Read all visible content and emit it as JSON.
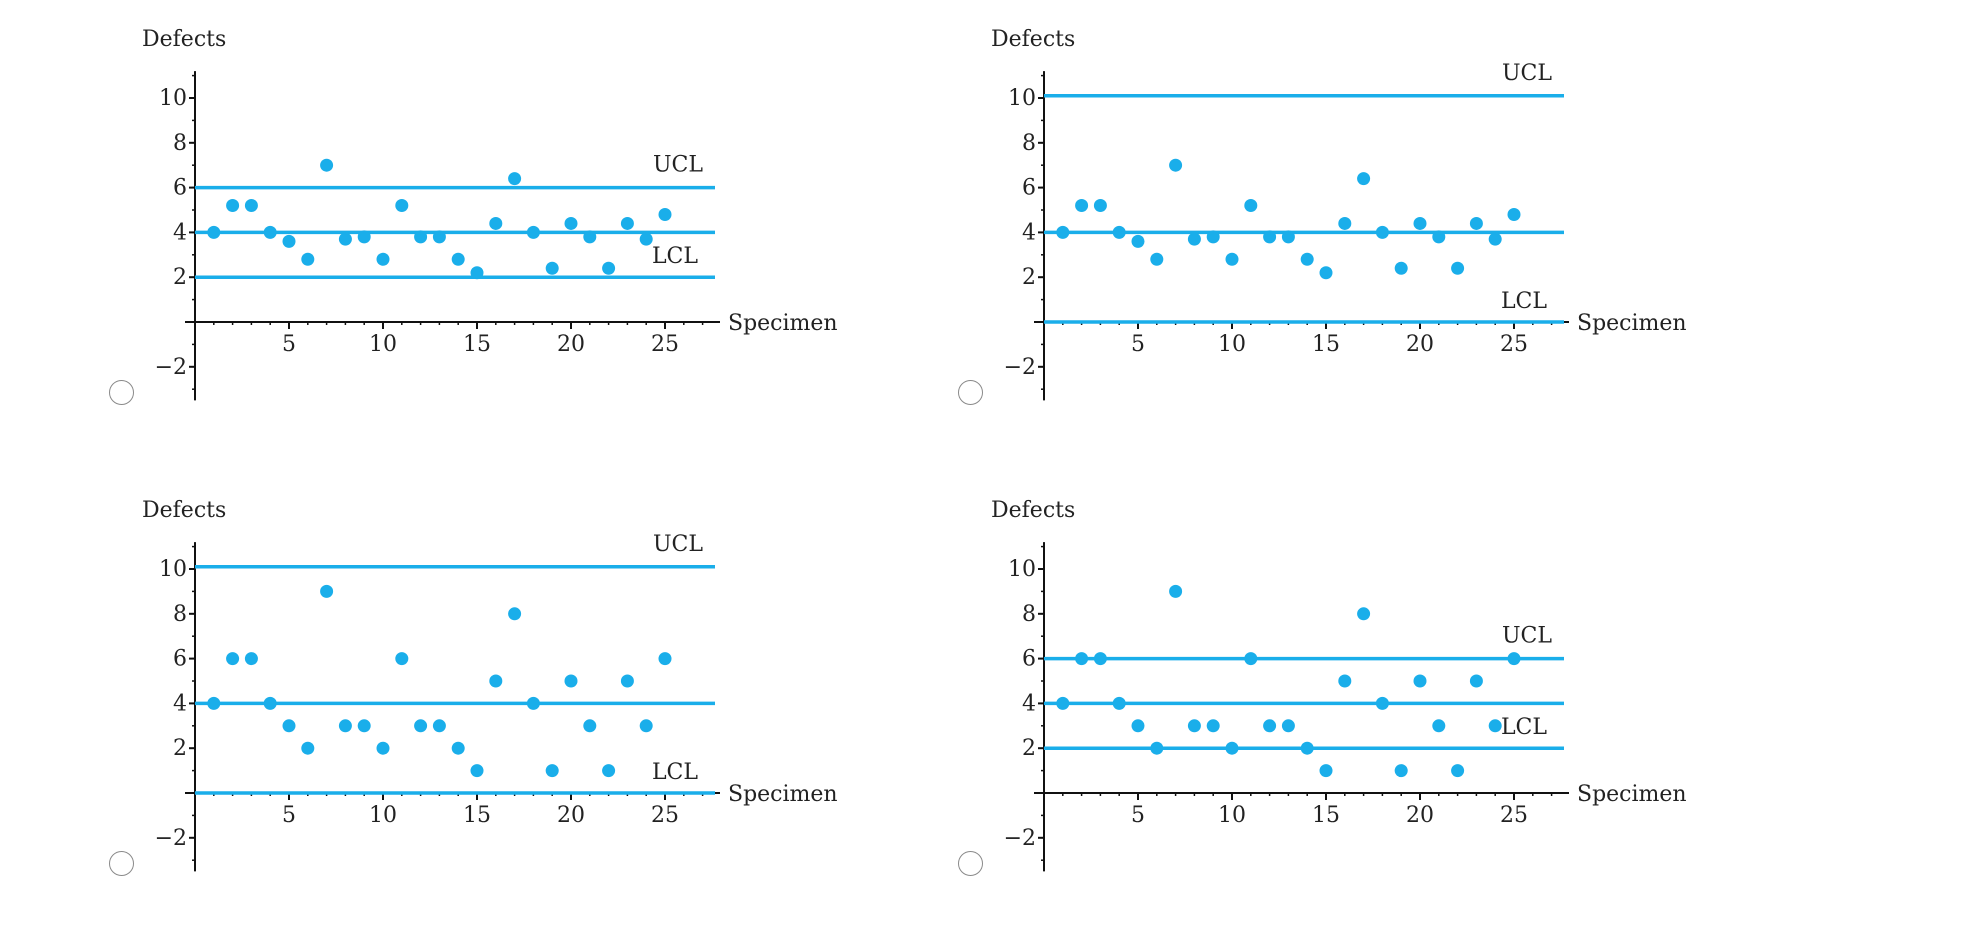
{
  "colors": {
    "accent": "#1aaeea",
    "axis": "#111111",
    "text": "#222222",
    "radio_border": "#8a8a8a"
  },
  "chart_data": [
    {
      "type": "scatter",
      "option_index": 1,
      "ylabel": "Defects",
      "xlabel": "Specimen",
      "xlim": [
        -1,
        27.5
      ],
      "ylim": [
        -3.5,
        11.2
      ],
      "xticks": [
        5,
        10,
        15,
        20,
        25
      ],
      "yticks": [
        -2,
        2,
        4,
        6,
        8,
        10
      ],
      "ucl": 6,
      "center": 4,
      "lcl": 2,
      "ucl_label": "UCL",
      "lcl_label": "LCL",
      "x": [
        1,
        2,
        3,
        4,
        5,
        6,
        7,
        8,
        9,
        10,
        11,
        12,
        13,
        14,
        15,
        16,
        17,
        18,
        19,
        20,
        21,
        22,
        23,
        24,
        25
      ],
      "y": [
        4,
        5.2,
        5.2,
        4,
        3.6,
        2.8,
        7,
        3.7,
        3.8,
        2.8,
        5.2,
        3.8,
        3.8,
        2.8,
        2.2,
        4.4,
        6.4,
        4,
        2.4,
        4.4,
        3.8,
        2.4,
        4.4,
        3.7,
        4.8
      ]
    },
    {
      "type": "scatter",
      "option_index": 2,
      "ylabel": "Defects",
      "xlabel": "Specimen",
      "xlim": [
        -1,
        27.5
      ],
      "ylim": [
        -3.5,
        11.2
      ],
      "xticks": [
        5,
        10,
        15,
        20,
        25
      ],
      "yticks": [
        -2,
        2,
        4,
        6,
        8,
        10
      ],
      "ucl": 10.1,
      "center": 4,
      "lcl": 0,
      "ucl_label": "UCL",
      "lcl_label": "LCL",
      "x": [
        1,
        2,
        3,
        4,
        5,
        6,
        7,
        8,
        9,
        10,
        11,
        12,
        13,
        14,
        15,
        16,
        17,
        18,
        19,
        20,
        21,
        22,
        23,
        24,
        25
      ],
      "y": [
        4,
        5.2,
        5.2,
        4,
        3.6,
        2.8,
        7,
        3.7,
        3.8,
        2.8,
        5.2,
        3.8,
        3.8,
        2.8,
        2.2,
        4.4,
        6.4,
        4,
        2.4,
        4.4,
        3.8,
        2.4,
        4.4,
        3.7,
        4.8
      ]
    },
    {
      "type": "scatter",
      "option_index": 3,
      "ylabel": "Defects",
      "xlabel": "Specimen",
      "xlim": [
        -1,
        27.5
      ],
      "ylim": [
        -3.5,
        11.2
      ],
      "xticks": [
        5,
        10,
        15,
        20,
        25
      ],
      "yticks": [
        -2,
        2,
        4,
        6,
        8,
        10
      ],
      "ucl": 10.1,
      "center": 4,
      "lcl": 0,
      "ucl_label": "UCL",
      "lcl_label": "LCL",
      "x": [
        1,
        2,
        3,
        4,
        5,
        6,
        7,
        8,
        9,
        10,
        11,
        12,
        13,
        14,
        15,
        16,
        17,
        18,
        19,
        20,
        21,
        22,
        23,
        24,
        25
      ],
      "y": [
        4,
        6,
        6,
        4,
        3,
        2,
        9,
        3,
        3,
        2,
        6,
        3,
        3,
        2,
        1,
        5,
        8,
        4,
        1,
        5,
        3,
        1,
        5,
        3,
        6
      ]
    },
    {
      "type": "scatter",
      "option_index": 4,
      "ylabel": "Defects",
      "xlabel": "Specimen",
      "xlim": [
        -1,
        27.5
      ],
      "ylim": [
        -3.5,
        11.2
      ],
      "xticks": [
        5,
        10,
        15,
        20,
        25
      ],
      "yticks": [
        -2,
        2,
        4,
        6,
        8,
        10
      ],
      "ucl": 6,
      "center": 4,
      "lcl": 2,
      "ucl_label": "UCL",
      "lcl_label": "LCL",
      "x": [
        1,
        2,
        3,
        4,
        5,
        6,
        7,
        8,
        9,
        10,
        11,
        12,
        13,
        14,
        15,
        16,
        17,
        18,
        19,
        20,
        21,
        22,
        23,
        24,
        25
      ],
      "y": [
        4,
        6,
        6,
        4,
        3,
        2,
        9,
        3,
        3,
        2,
        6,
        3,
        3,
        2,
        1,
        5,
        8,
        4,
        1,
        5,
        3,
        1,
        5,
        3,
        6
      ]
    }
  ]
}
